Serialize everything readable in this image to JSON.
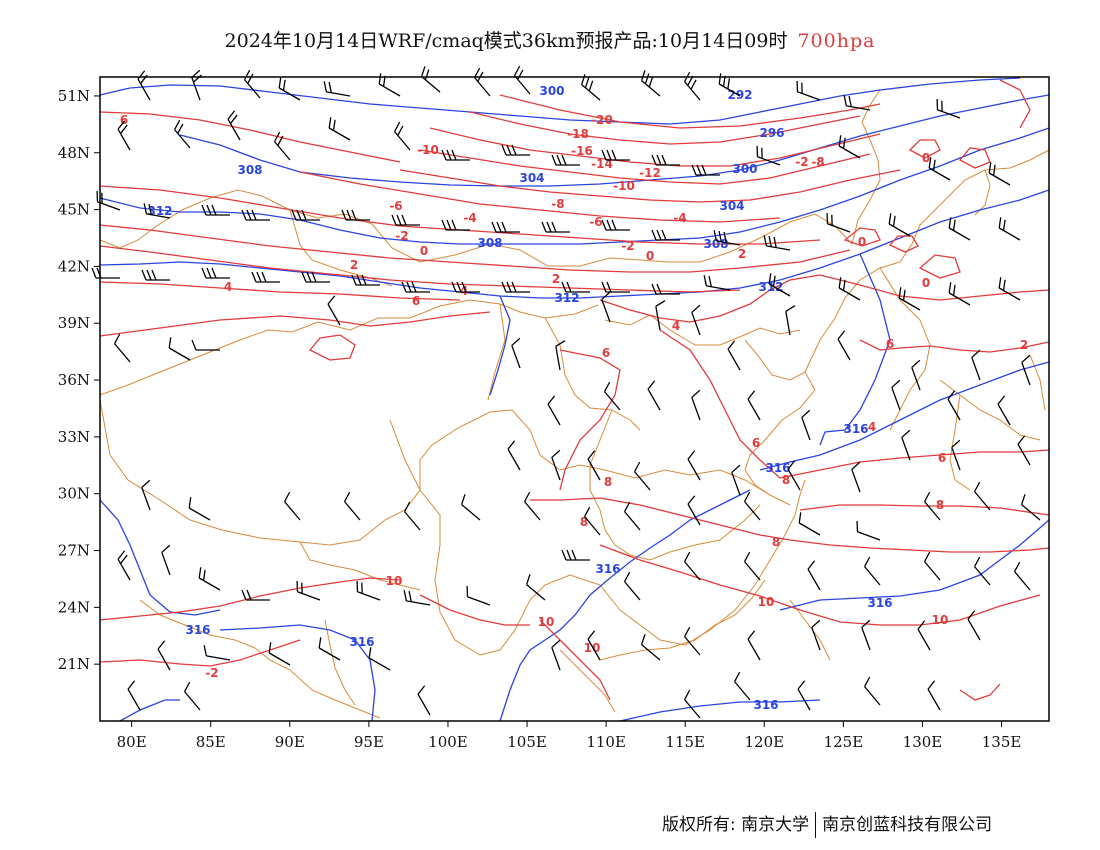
{
  "title": {
    "main": "2024年10月14日WRF/cmaq模式36km预报产品:10月14日09时",
    "level": "700hpa"
  },
  "axes": {
    "lon_ticks": [
      "80E",
      "85E",
      "90E",
      "95E",
      "100E",
      "105E",
      "110E",
      "115E",
      "120E",
      "125E",
      "130E",
      "135E"
    ],
    "lat_ticks": [
      "51N",
      "48N",
      "45N",
      "42N",
      "39N",
      "36N",
      "33N",
      "30N",
      "27N",
      "24N",
      "21N"
    ],
    "lon_range": [
      78,
      138
    ],
    "lat_range": [
      18,
      52
    ]
  },
  "colors": {
    "geopotential": "#2a44e0",
    "temperature": "#e23b3b",
    "borders": "#d98a3a",
    "barbs": "#000000"
  },
  "geopotential_labels": [
    "300",
    "292",
    "296",
    "308",
    "304",
    "300",
    "312",
    "304",
    "308",
    "308",
    "312",
    "312",
    "316",
    "316",
    "316",
    "316",
    "316",
    "316",
    "316"
  ],
  "temperature_labels": [
    "-20",
    "-18",
    "-16",
    "-14",
    "-12",
    "-10",
    "-10",
    "-8",
    "-8",
    "-6",
    "-6",
    "-4",
    "-4",
    "-2",
    "-2",
    "-2",
    "0",
    "0",
    "0",
    "0",
    "0",
    "2",
    "2",
    "2",
    "4",
    "4",
    "6",
    "6",
    "6",
    "6",
    "8",
    "8",
    "8",
    "8",
    "10",
    "10",
    "10",
    "10",
    "10",
    "-2",
    "6",
    "4",
    "4",
    "2",
    "6",
    "8"
  ],
  "footer": {
    "left": "版权所有: 南京大学",
    "right": "南京创蓝科技有限公司"
  }
}
